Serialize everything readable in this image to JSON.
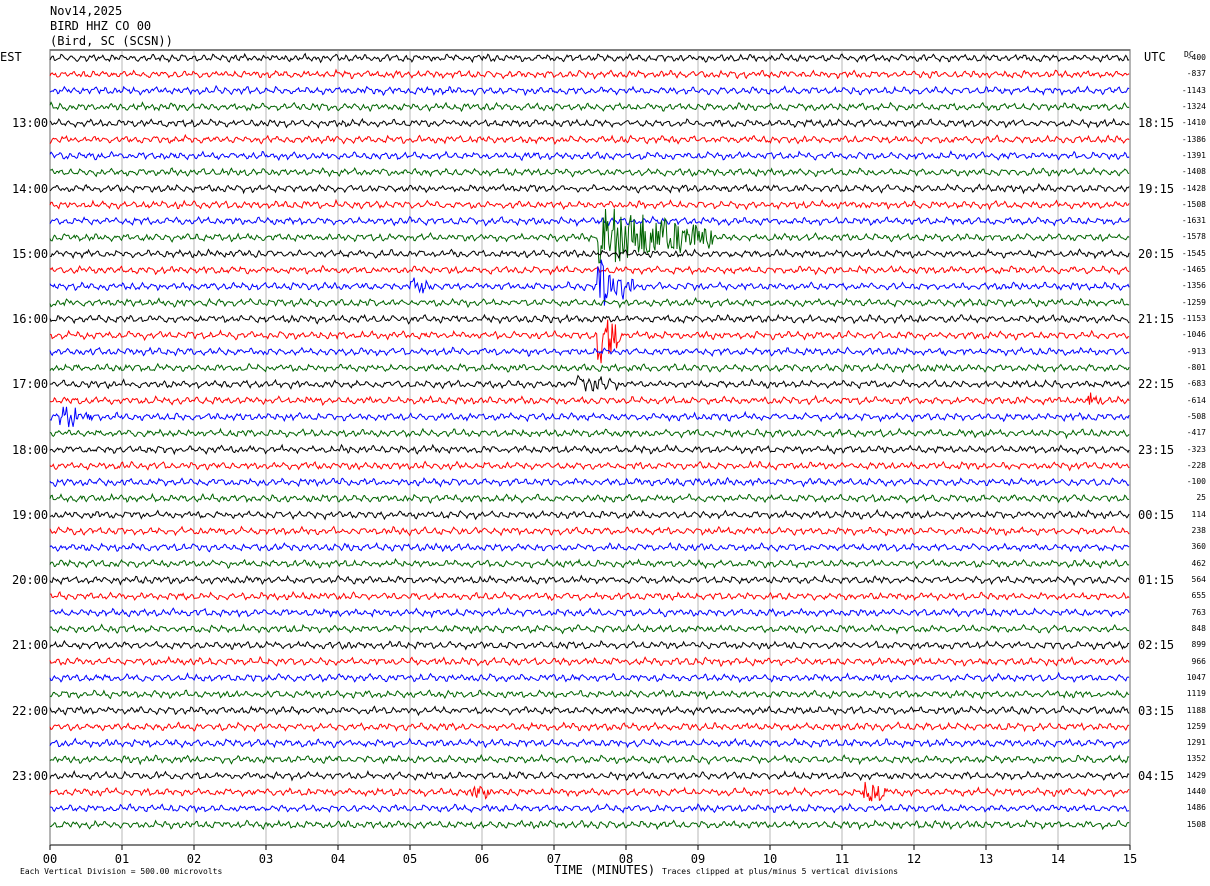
{
  "header": {
    "date": "Nov14,2025",
    "channel": "BIRD HHZ CO 00",
    "station": "(Bird, SC (SCSN))"
  },
  "left_tz": "EST",
  "right_tz": "UTC",
  "dc_title": "DC",
  "chart_data": {
    "type": "line",
    "title": "",
    "xlabel": "TIME (MINUTES)",
    "xlim": [
      0,
      15
    ],
    "x_ticks": [
      "00",
      "01",
      "02",
      "03",
      "04",
      "05",
      "06",
      "07",
      "08",
      "09",
      "10",
      "11",
      "12",
      "13",
      "14",
      "15"
    ],
    "left_hour_labels": [
      "13:00",
      "14:00",
      "15:00",
      "16:00",
      "17:00",
      "18:00",
      "19:00",
      "20:00",
      "21:00",
      "22:00",
      "23:00"
    ],
    "right_hour_labels": [
      "18:15",
      "19:15",
      "20:15",
      "21:15",
      "22:15",
      "23:15",
      "00:15",
      "01:15",
      "02:15",
      "03:15",
      "04:15"
    ],
    "trace_colors": [
      "#000000",
      "#ff0000",
      "#0000ff",
      "#006400"
    ],
    "dc_offsets": [
      -400,
      -837,
      -1143,
      -1324,
      -1410,
      -1386,
      -1391,
      -1408,
      -1428,
      -1508,
      -1631,
      -1578,
      -1545,
      -1465,
      -1356,
      -1259,
      -1153,
      -1046,
      -913,
      -801,
      -683,
      -614,
      -508,
      -417,
      -323,
      -228,
      -100,
      25,
      114,
      238,
      360,
      462,
      564,
      655,
      763,
      848,
      899,
      966,
      1047,
      1119,
      1188,
      1259,
      1291,
      1352,
      1429,
      1440,
      1486,
      1508
    ],
    "events": [
      {
        "trace": 11,
        "minute_start": 7.6,
        "minute_end": 9.2,
        "amplitude": 5
      },
      {
        "trace": 14,
        "minute_start": 7.6,
        "minute_end": 8.1,
        "amplitude": 5
      },
      {
        "trace": 14,
        "minute_start": 5.0,
        "minute_end": 5.3,
        "amplitude": 1.5
      },
      {
        "trace": 17,
        "minute_start": 7.6,
        "minute_end": 7.95,
        "amplitude": 5
      },
      {
        "trace": 20,
        "minute_start": 7.3,
        "minute_end": 7.9,
        "amplitude": 1.5
      },
      {
        "trace": 22,
        "minute_start": 0.1,
        "minute_end": 0.6,
        "amplitude": 1.8
      },
      {
        "trace": 45,
        "minute_start": 5.8,
        "minute_end": 6.1,
        "amplitude": 1.6
      },
      {
        "trace": 45,
        "minute_start": 11.3,
        "minute_end": 11.7,
        "amplitude": 1.6
      },
      {
        "trace": 21,
        "minute_start": 14.4,
        "minute_end": 14.6,
        "amplitude": 1.4
      }
    ]
  },
  "footer": {
    "left": "Each Vertical Division =  500.00 microvolts",
    "right": "Traces clipped at plus/minus 5 vertical divisions"
  }
}
